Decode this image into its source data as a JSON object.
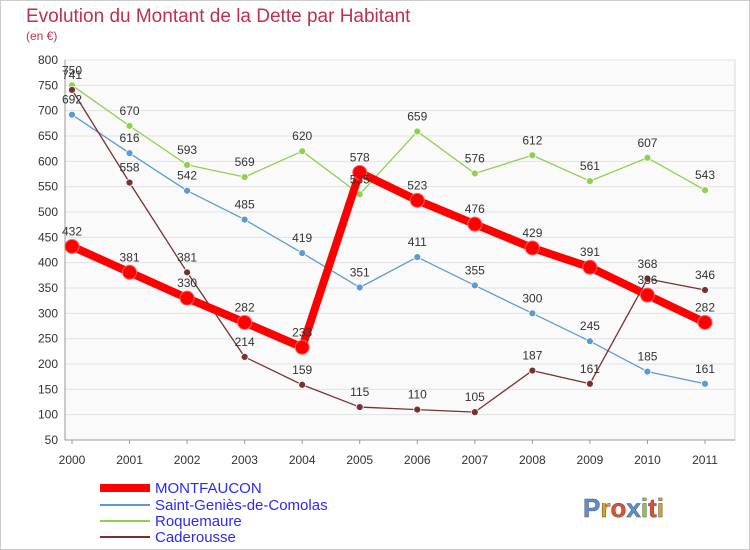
{
  "chart_data": {
    "type": "line",
    "title": "Evolution du Montant de la Dette par Habitant",
    "subtitle": "(en €)",
    "categories": [
      "2000",
      "2001",
      "2002",
      "2003",
      "2004",
      "2005",
      "2006",
      "2007",
      "2008",
      "2009",
      "2010",
      "2011"
    ],
    "ylim": [
      50,
      800
    ],
    "yticks": [
      50,
      100,
      150,
      200,
      250,
      300,
      350,
      400,
      450,
      500,
      550,
      600,
      650,
      700,
      750,
      800
    ],
    "grid": "horizontal",
    "legend_position": "bottom-left",
    "series": [
      {
        "name": "MONTFAUCON",
        "color": "#ff0000",
        "values": [
          432,
          381,
          330,
          282,
          233,
          578,
          523,
          476,
          429,
          391,
          336,
          282
        ]
      },
      {
        "name": "Saint-Geniès-de-Comolas",
        "color": "#5b9bd5",
        "values": [
          692,
          616,
          542,
          485,
          419,
          351,
          411,
          355,
          300,
          245,
          185,
          161
        ]
      },
      {
        "name": "Roquemaure",
        "color": "#8fd14f",
        "values": [
          750,
          670,
          593,
          569,
          620,
          535,
          659,
          576,
          612,
          561,
          607,
          543
        ]
      },
      {
        "name": "Caderousse",
        "color": "#7a3030",
        "values": [
          741,
          558,
          381,
          214,
          159,
          115,
          110,
          105,
          187,
          161,
          368,
          346
        ]
      }
    ]
  },
  "branding": {
    "logo_text": "Proxiti",
    "letter_colors": [
      "#5a8fd6",
      "#e0a020",
      "#e05030",
      "#5a8fd6",
      "#8cc83c",
      "#e05030",
      "#e0a020"
    ]
  }
}
